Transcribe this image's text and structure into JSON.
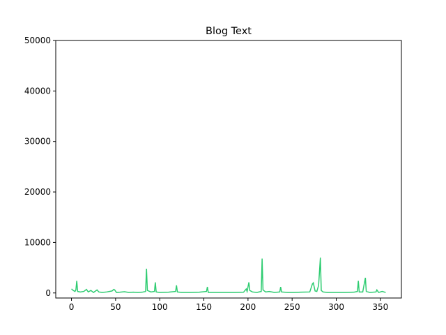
{
  "chart_data": {
    "type": "line",
    "title": "Blog Text",
    "x": [
      0,
      2,
      4,
      5,
      6,
      7,
      10,
      14,
      17,
      19,
      22,
      25,
      29,
      31,
      35,
      40,
      46,
      48,
      49,
      51,
      55,
      60,
      65,
      70,
      75,
      80,
      84,
      85,
      86,
      90,
      94,
      95,
      96,
      100,
      110,
      118,
      119,
      120,
      125,
      135,
      145,
      153,
      154,
      155,
      165,
      175,
      185,
      195,
      198,
      199,
      201,
      202,
      205,
      210,
      215,
      216,
      217,
      220,
      224,
      230,
      236,
      237,
      238,
      245,
      252,
      260,
      270,
      273,
      274,
      276,
      278,
      280,
      282,
      283,
      285,
      290,
      300,
      310,
      320,
      324,
      325,
      326,
      330,
      333,
      334,
      338,
      345,
      346,
      348,
      352,
      356
    ],
    "series": [
      {
        "color": "#2ecc71",
        "values": [
          800,
          500,
          300,
          600,
          2400,
          300,
          200,
          300,
          700,
          200,
          500,
          100,
          600,
          200,
          100,
          200,
          400,
          700,
          600,
          100,
          150,
          250,
          100,
          150,
          100,
          150,
          300,
          4800,
          500,
          200,
          300,
          2100,
          200,
          100,
          150,
          300,
          1500,
          200,
          100,
          100,
          150,
          300,
          1200,
          100,
          100,
          100,
          100,
          150,
          800,
          300,
          2100,
          500,
          200,
          100,
          300,
          6800,
          600,
          200,
          300,
          100,
          200,
          1200,
          200,
          100,
          100,
          150,
          200,
          1800,
          2000,
          400,
          300,
          1500,
          7000,
          500,
          200,
          100,
          100,
          100,
          150,
          300,
          2400,
          200,
          200,
          3000,
          300,
          100,
          200,
          600,
          100,
          300,
          100
        ]
      }
    ],
    "xlim": [
      -17.8,
      373.8
    ],
    "ylim": [
      -1000,
      50000
    ],
    "xticks": [
      0,
      50,
      100,
      150,
      200,
      250,
      300,
      350
    ],
    "yticks": [
      0,
      10000,
      20000,
      30000,
      40000,
      50000
    ]
  }
}
